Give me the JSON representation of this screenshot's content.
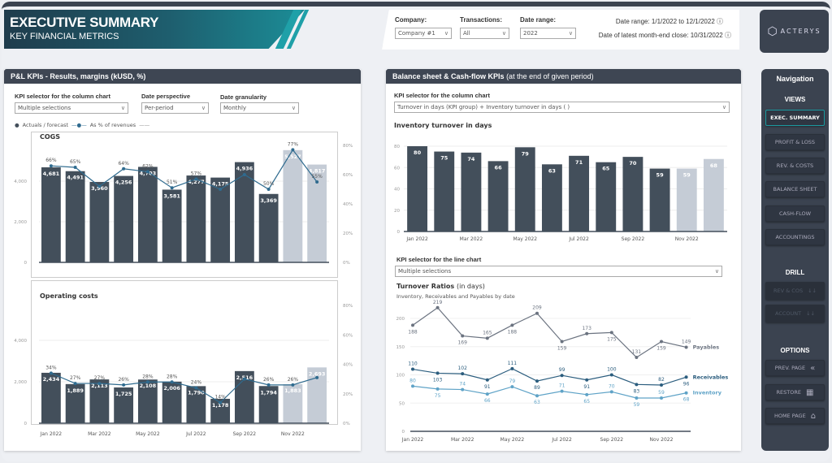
{
  "header": {
    "title": "EXECUTIVE SUMMARY",
    "subtitle": "KEY FINANCIAL METRICS"
  },
  "filters": {
    "company_label": "Company:",
    "company_value": "Company #1",
    "transactions_label": "Transactions:",
    "transactions_value": "All",
    "date_range_label": "Date range:",
    "date_range_value": "2022",
    "date_range_info": "Date range: 1/1/2022 to 12/1/2022",
    "close_info": "Date of latest month-end close: 10/31/2022"
  },
  "logo": {
    "text": "ACTERYS"
  },
  "left_panel": {
    "title": "P&L KPIs - Results, margins (kUSD, %)",
    "kpi_selector_label": "KPI selector for the column chart",
    "kpi_selector_value": "Multiple selections",
    "date_perspective_label": "Date perspective",
    "date_perspective_value": "Per-period",
    "date_granularity_label": "Date granularity",
    "date_granularity_value": "Monthly",
    "legend": {
      "actuals": "Actuals / forecast",
      "pct": "As % of revenues"
    }
  },
  "right_panel": {
    "title_bold": "Balance sheet & Cash-flow KPIs",
    "title_normal": "(at the end of given period)",
    "kpi_column_label": "KPI selector for the column chart",
    "kpi_column_value": "Turnover in days (KPI group) + Inventory turnover in days ( )",
    "kpi_line_label": "KPI selector for the line chart",
    "kpi_line_value": "Multiple selections"
  },
  "chart_data": [
    {
      "type": "bar",
      "title": "COGS",
      "months": [
        "Jan 2022",
        "Feb 2022",
        "Mar 2022",
        "Apr 2022",
        "May 2022",
        "Jun 2022",
        "Jul 2022",
        "Aug 2022",
        "Sep 2022",
        "Oct 2022",
        "Nov 2022",
        "Dec 2022"
      ],
      "y_ticks": [
        "0",
        "2,000",
        "4,000"
      ],
      "y2_ticks": [
        "0%",
        "20%",
        "40%",
        "60%",
        "80%"
      ],
      "values": [
        4681,
        4491,
        3960,
        4256,
        4703,
        3581,
        4277,
        4175,
        4936,
        3369,
        5527,
        4817
      ],
      "value_labels": [
        "4,681",
        "4,491",
        "3,960",
        "4,256",
        "4,703",
        "3,581",
        "4,277",
        "4,175",
        "4,936",
        "3,369",
        "5,527",
        "4,817"
      ],
      "forecast": [
        false,
        false,
        false,
        false,
        false,
        false,
        false,
        false,
        false,
        false,
        true,
        true
      ],
      "pct": [
        66,
        65,
        52,
        64,
        62,
        51,
        57,
        50,
        60,
        50,
        77,
        55
      ],
      "pct_labels": [
        "66%",
        "65%",
        "",
        "64%",
        "62%",
        "51%",
        "57%",
        "",
        "",
        "50%",
        "77%",
        "55%"
      ],
      "ylim": [
        0,
        6000
      ],
      "y2lim": [
        0,
        80
      ]
    },
    {
      "type": "bar",
      "title": "Operating costs",
      "x_ticks": [
        "Jan 2022",
        "Mar 2022",
        "May 2022",
        "Jul 2022",
        "Sep 2022",
        "Nov 2022"
      ],
      "y_ticks": [
        "0",
        "2,000",
        "4,000"
      ],
      "y2_ticks": [
        "0%",
        "20%",
        "40%",
        "60%",
        "80%"
      ],
      "values": [
        2434,
        1889,
        2113,
        1725,
        2108,
        2006,
        1790,
        1178,
        2516,
        1794,
        1883,
        2693
      ],
      "value_labels": [
        "2,434",
        "1,889",
        "2,113",
        "1,725",
        "2,108",
        "2,006",
        "1,790",
        "1,178",
        "2,516",
        "1,794",
        "1,883",
        "2,693"
      ],
      "forecast": [
        false,
        false,
        false,
        false,
        false,
        false,
        false,
        false,
        false,
        false,
        true,
        true
      ],
      "pct": [
        34,
        27,
        27,
        26,
        28,
        28,
        24,
        14,
        30,
        26,
        26,
        31
      ],
      "pct_labels": [
        "34%",
        "27%",
        "27%",
        "26%",
        "28%",
        "28%",
        "24%",
        "14%",
        "",
        "26%",
        "26%",
        ""
      ],
      "ylim": [
        0,
        5600
      ],
      "y2lim": [
        0,
        80
      ]
    },
    {
      "type": "bar",
      "title": "Inventory turnover in days",
      "x_ticks": [
        "Jan 2022",
        "Mar 2022",
        "May 2022",
        "Jul 2022",
        "Sep 2022",
        "Nov 2022"
      ],
      "y_ticks": [
        "0",
        "20",
        "40",
        "60",
        "80"
      ],
      "values": [
        80,
        75,
        74,
        66,
        79,
        63,
        71,
        65,
        70,
        59,
        59,
        68
      ],
      "forecast": [
        false,
        false,
        false,
        false,
        false,
        false,
        false,
        false,
        false,
        false,
        true,
        true
      ],
      "ylim": [
        0,
        80
      ]
    },
    {
      "type": "line",
      "title": "Turnover Ratios",
      "title_suffix": "(in days)",
      "subtitle": "Inventory, Receivables and Payables by date",
      "x_ticks": [
        "Jan 2022",
        "Mar 2022",
        "May 2022",
        "Jul 2022",
        "Sep 2022",
        "Nov 2022"
      ],
      "y_ticks": [
        "0",
        "50",
        "100",
        "150",
        "200"
      ],
      "ylim": [
        0,
        200
      ],
      "series": [
        {
          "name": "Payables",
          "color": "#6b7380",
          "values": [
            188,
            219,
            169,
            165,
            188,
            209,
            159,
            173,
            175,
            131,
            159,
            149
          ]
        },
        {
          "name": "Receivables",
          "color": "#2b5d7e",
          "values": [
            110,
            103,
            102,
            91,
            111,
            89,
            99,
            91,
            100,
            83,
            82,
            96
          ]
        },
        {
          "name": "Inventory",
          "color": "#5fa3c7",
          "values": [
            80,
            75,
            74,
            66,
            79,
            63,
            71,
            65,
            70,
            59,
            59,
            68
          ]
        }
      ]
    }
  ],
  "colors": {
    "actual": "#434f5b",
    "forecast": "#c5ccd6",
    "pct_line": "#2f6b8f",
    "accent": "#1b9aa0"
  },
  "nav": {
    "title": "Navigation",
    "views_label": "VIEWS",
    "views": [
      "EXEC. SUMMARY",
      "PROFIT & LOSS",
      "REV. & COSTS",
      "BALANCE SHEET",
      "CASH-FLOW",
      "ACCOUNTINGS"
    ],
    "drill_label": "DRILL",
    "drill": [
      "REV & COS",
      "ACCOUNT"
    ],
    "options_label": "OPTIONS",
    "options": [
      "PREV. PAGE",
      "RESTORE",
      "HOME PAGE"
    ]
  }
}
